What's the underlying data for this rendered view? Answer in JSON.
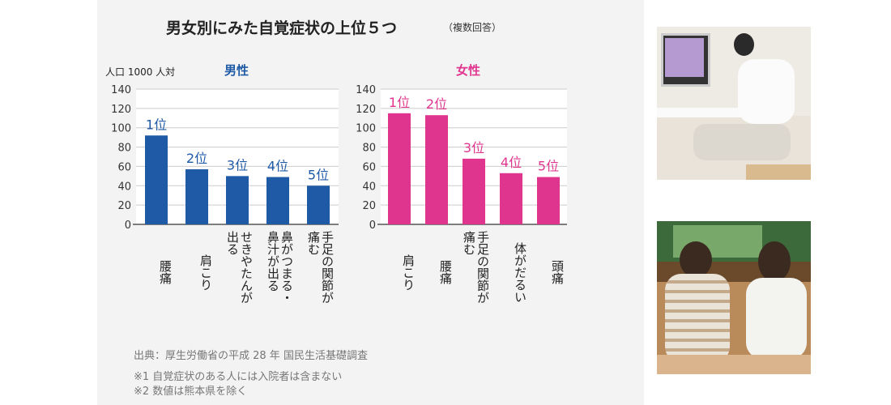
{
  "header": {
    "title": "男女別にみた自覚症状の上位５つ",
    "note": "（複数回答）"
  },
  "chart_data": [
    {
      "type": "bar",
      "title": "男性",
      "y_label": "人口 1000 人対",
      "color": "#1f5aa6",
      "categories": [
        "腰痛",
        "肩こり",
        "せきやたんが出る",
        "鼻がつまる・鼻汁が出る",
        "手足の関節が痛む"
      ],
      "values": [
        92,
        57,
        50,
        49,
        40
      ],
      "rank_labels": [
        "1位",
        "2位",
        "3位",
        "4位",
        "5位"
      ],
      "ylim": [
        0,
        140
      ],
      "yticks": [
        0,
        20,
        40,
        60,
        80,
        100,
        120,
        140
      ],
      "grid": true
    },
    {
      "type": "bar",
      "title": "女性",
      "color": "#e0358f",
      "categories": [
        "肩こり",
        "腰痛",
        "手足の関節が痛む",
        "体がだるい",
        "頭痛"
      ],
      "values": [
        115,
        113,
        68,
        53,
        49
      ],
      "rank_labels": [
        "1位",
        "2位",
        "3位",
        "4位",
        "5位"
      ],
      "ylim": [
        0,
        140
      ],
      "yticks": [
        0,
        20,
        40,
        60,
        80,
        100,
        120,
        140
      ],
      "grid": true
    }
  ],
  "footer": {
    "source": "出典：厚生労働省の平成 28 年 国民生活基礎調査",
    "notes": [
      "※1 自覚症状のある人には入院者は含まない",
      "※2 数値は熊本県を除く"
    ]
  }
}
